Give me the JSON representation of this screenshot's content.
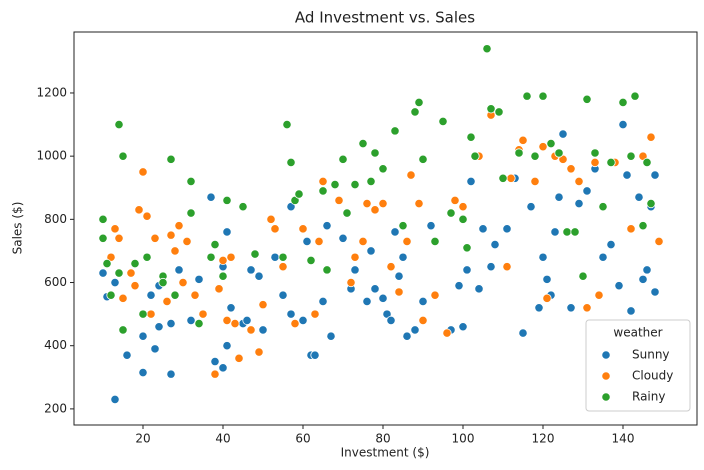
{
  "chart_data": {
    "type": "scatter",
    "title": "Ad Investment vs. Sales",
    "x_label": "Investment ($)",
    "y_label": "Sales ($)",
    "xlim": [
      2.75,
      158.5
    ],
    "ylim": [
      149,
      1393
    ],
    "xticks": [
      20,
      40,
      60,
      80,
      100,
      120,
      140
    ],
    "yticks": [
      200,
      400,
      600,
      800,
      1000,
      1200
    ],
    "legend_title": "weather",
    "legend_position": "lower right",
    "series": [
      {
        "name": "Sunny",
        "color": "#1f77b4",
        "x": [
          10,
          11,
          13,
          13,
          16,
          20,
          20,
          22,
          23,
          24,
          24,
          27,
          27,
          29,
          32,
          34,
          37,
          38,
          40,
          40,
          41,
          41,
          42,
          45,
          46,
          47,
          49,
          50,
          53,
          55,
          57,
          57,
          60,
          61,
          62,
          63,
          65,
          66,
          67,
          70,
          72,
          73,
          76,
          77,
          78,
          80,
          81,
          82,
          83,
          84,
          85,
          86,
          88,
          90,
          92,
          97,
          99,
          100,
          101,
          102,
          104,
          105,
          107,
          108,
          111,
          113,
          115,
          117,
          119,
          120,
          121,
          122,
          123,
          124,
          125,
          127,
          129,
          131,
          133,
          135,
          137,
          139,
          140,
          141,
          142,
          144,
          145,
          146,
          147,
          148,
          148
        ],
        "values": [
          630,
          555,
          230,
          600,
          370,
          315,
          430,
          560,
          390,
          460,
          590,
          310,
          470,
          640,
          480,
          610,
          870,
          350,
          330,
          650,
          760,
          400,
          520,
          470,
          480,
          640,
          620,
          450,
          680,
          560,
          500,
          840,
          480,
          730,
          370,
          370,
          540,
          780,
          430,
          740,
          580,
          640,
          540,
          700,
          580,
          550,
          500,
          480,
          760,
          620,
          680,
          430,
          450,
          540,
          780,
          450,
          590,
          460,
          640,
          920,
          580,
          770,
          650,
          720,
          770,
          930,
          440,
          840,
          520,
          680,
          610,
          560,
          760,
          870,
          1070,
          520,
          850,
          890,
          960,
          680,
          720,
          590,
          1100,
          940,
          510,
          870,
          610,
          640,
          840,
          570,
          940
        ]
      },
      {
        "name": "Cloudy",
        "color": "#ff7f0e",
        "x": [
          12,
          13,
          14,
          15,
          17,
          18,
          19,
          20,
          21,
          22,
          23,
          26,
          27,
          28,
          29,
          30,
          31,
          33,
          35,
          38,
          39,
          40,
          41,
          42,
          43,
          44,
          47,
          49,
          50,
          52,
          53,
          55,
          58,
          60,
          63,
          64,
          65,
          69,
          72,
          73,
          75,
          76,
          78,
          80,
          82,
          84,
          86,
          87,
          89,
          90,
          93,
          96,
          98,
          100,
          104,
          107,
          111,
          112,
          114,
          115,
          118,
          120,
          121,
          123,
          125,
          127,
          129,
          131,
          133,
          134,
          138,
          142,
          145,
          147,
          149
        ],
        "values": [
          680,
          770,
          740,
          550,
          630,
          590,
          830,
          950,
          810,
          500,
          740,
          540,
          750,
          700,
          780,
          600,
          730,
          560,
          500,
          310,
          580,
          670,
          480,
          680,
          470,
          360,
          450,
          380,
          530,
          800,
          770,
          650,
          470,
          770,
          500,
          730,
          920,
          860,
          600,
          680,
          730,
          850,
          830,
          850,
          650,
          570,
          730,
          940,
          850,
          480,
          560,
          440,
          860,
          840,
          1000,
          1130,
          650,
          930,
          1020,
          1050,
          920,
          1030,
          550,
          1000,
          990,
          960,
          920,
          520,
          980,
          560,
          980,
          770,
          1000,
          1060,
          730
        ]
      },
      {
        "name": "Rainy",
        "color": "#2ca02c",
        "x": [
          10,
          10,
          11,
          12,
          14,
          14,
          15,
          15,
          18,
          20,
          21,
          25,
          25,
          27,
          28,
          32,
          32,
          34,
          37,
          38,
          40,
          41,
          45,
          48,
          55,
          56,
          57,
          58,
          59,
          62,
          65,
          66,
          68,
          70,
          71,
          73,
          75,
          77,
          78,
          80,
          83,
          85,
          88,
          89,
          90,
          93,
          95,
          97,
          100,
          101,
          102,
          103,
          106,
          107,
          109,
          110,
          114,
          116,
          118,
          120,
          122,
          124,
          126,
          128,
          130,
          131,
          133,
          135,
          137,
          140,
          142,
          143,
          145,
          146,
          147
        ],
        "values": [
          800,
          740,
          660,
          560,
          1100,
          630,
          1000,
          450,
          660,
          500,
          680,
          620,
          600,
          990,
          560,
          920,
          820,
          470,
          680,
          720,
          620,
          860,
          840,
          690,
          680,
          1100,
          980,
          860,
          880,
          670,
          890,
          640,
          910,
          990,
          820,
          910,
          1040,
          920,
          1010,
          960,
          1080,
          780,
          1140,
          1170,
          990,
          730,
          1110,
          820,
          800,
          710,
          1060,
          1000,
          1340,
          1150,
          1140,
          930,
          1010,
          1190,
          1000,
          1190,
          1040,
          1010,
          760,
          760,
          620,
          1180,
          1010,
          840,
          980,
          1170,
          1000,
          1190,
          780,
          980,
          850
        ]
      }
    ]
  }
}
